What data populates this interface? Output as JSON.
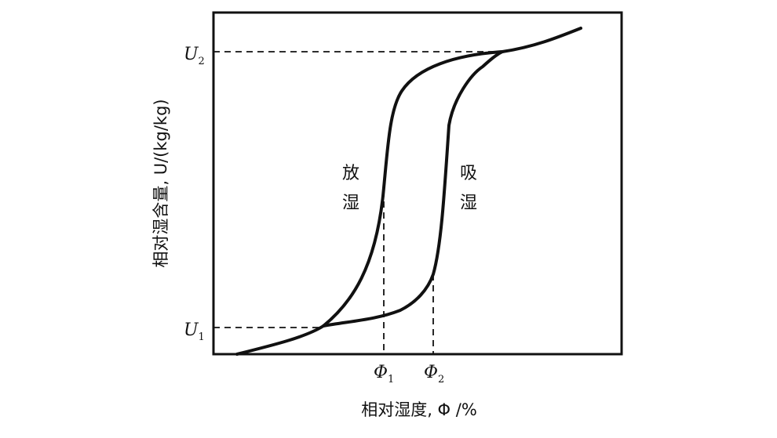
{
  "axes": {
    "xlabel": "相对湿度, Φ /%",
    "ylabel": "相对湿含量, U/(kg/kg)"
  },
  "y_markers": [
    {
      "symbol": "U",
      "sub": "2"
    },
    {
      "symbol": "U",
      "sub": "1"
    }
  ],
  "x_markers": [
    {
      "symbol": "Φ",
      "sub": "1"
    },
    {
      "symbol": "Φ",
      "sub": "2"
    }
  ],
  "curves": {
    "desorption": [
      "放",
      "湿"
    ],
    "adsorption": [
      "吸",
      "湿"
    ]
  }
}
